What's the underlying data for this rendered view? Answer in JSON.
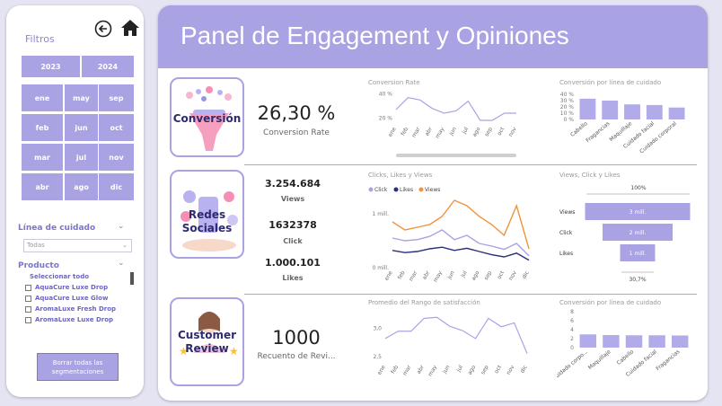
{
  "sidebar": {
    "title": "Filtros",
    "years": [
      "2023",
      "2024"
    ],
    "months": [
      "ene",
      "may",
      "sep",
      "feb",
      "jun",
      "oct",
      "mar",
      "jul",
      "nov",
      "abr",
      "ago",
      "dic"
    ],
    "care_line_label": "Línea de cuidado",
    "care_line_value": "Todas",
    "product_label": "Producto",
    "products": [
      "Seleccionar todo",
      "AquaCure Luxe Drop",
      "AquaCure Luxe Glow",
      "AromaLuxe Fresh Drop",
      "AromaLuxe Luxe Drop"
    ],
    "clear_button": "Borrar todas las segmentaciones"
  },
  "header": {
    "title": "Panel de Engagement y Opiniones"
  },
  "cards": {
    "conversion": "Conversión",
    "social_line1": "Redes",
    "social_line2": "Sociales",
    "review_line1": "Customer",
    "review_line2": "Review"
  },
  "kpis": {
    "conversion_rate_value": "26,30 %",
    "conversion_rate_label": "Conversion Rate",
    "views_value": "3.254.684",
    "views_label": "Views",
    "click_value": "1632378",
    "click_label": "Click",
    "likes_value": "1.000.101",
    "likes_label": "Likes",
    "reviews_value": "1000",
    "reviews_label": "Recuento de Revi..."
  },
  "chart_data": [
    {
      "type": "line",
      "title": "Conversion Rate",
      "categories": [
        "ene",
        "feb",
        "mar",
        "abr",
        "may",
        "jun",
        "jul",
        "ago",
        "sep",
        "oct",
        "nov"
      ],
      "series": [
        {
          "values": [
            27,
            37,
            35,
            28,
            24,
            26,
            34,
            18,
            18,
            24,
            24
          ]
        }
      ],
      "yticks": [
        "20 %",
        "40 %"
      ],
      "ylim": [
        15,
        42
      ],
      "color": "#a9a3e3"
    },
    {
      "type": "bar",
      "title": "Conversión por línea de cuidado",
      "categories": [
        "Cabello",
        "Fragancias",
        "Maquillaje",
        "Cuidado facial",
        "Cuidado corporal"
      ],
      "values": [
        33,
        30,
        24,
        23,
        19
      ],
      "yticks": [
        "0 %",
        "10 %",
        "20 %",
        "30 %",
        "40 %"
      ],
      "ylim": [
        0,
        40
      ],
      "color": "#b1abea"
    },
    {
      "type": "line",
      "title": "Clicks, Likes y Views",
      "categories": [
        "ene",
        "feb",
        "mar",
        "abr",
        "may",
        "jun",
        "jul",
        "ago",
        "sep",
        "oct",
        "nov",
        "dic"
      ],
      "series": [
        {
          "name": "Click",
          "color": "#a9a3e3",
          "values": [
            0.55,
            0.5,
            0.52,
            0.58,
            0.7,
            0.52,
            0.6,
            0.45,
            0.4,
            0.34,
            0.45,
            0.22
          ]
        },
        {
          "name": "Likes",
          "color": "#2a2f7a",
          "values": [
            0.32,
            0.28,
            0.3,
            0.35,
            0.38,
            0.32,
            0.36,
            0.3,
            0.24,
            0.2,
            0.27,
            0.14
          ]
        },
        {
          "name": "Views",
          "color": "#f0933a",
          "values": [
            0.85,
            0.7,
            0.75,
            0.8,
            0.95,
            1.25,
            1.15,
            0.95,
            0.8,
            0.6,
            1.15,
            0.35
          ]
        }
      ],
      "yticks": [
        "0 mill.",
        "1 mill."
      ],
      "ylim": [
        0,
        1.3
      ]
    },
    {
      "type": "bar",
      "title": "Views, Click y Likes",
      "top_label": "100%",
      "bottom_label": "30,7%",
      "categories": [
        "Views",
        "Click",
        "Likes"
      ],
      "values": [
        3,
        2,
        1
      ],
      "value_labels": [
        "3 mill.",
        "2 mill.",
        "1 mill."
      ],
      "color": "#a9a3e3"
    },
    {
      "type": "line",
      "title": "Promedio del Rango de satisfacción",
      "categories": [
        "ene",
        "feb",
        "mar",
        "abr",
        "may",
        "jun",
        "jul",
        "ago",
        "sep",
        "oct",
        "nov",
        "dic"
      ],
      "series": [
        {
          "values": [
            2.82,
            2.95,
            2.95,
            3.18,
            3.2,
            3.04,
            2.96,
            2.82,
            3.18,
            3.03,
            3.1,
            2.55
          ]
        }
      ],
      "yticks": [
        "2,5",
        "3,0"
      ],
      "ylim": [
        2.4,
        3.3
      ],
      "color": "#a9a3e3"
    },
    {
      "type": "bar",
      "title": "Conversión por línea de cuidado",
      "categories": [
        "Cuidado corpo...",
        "Maquillaje",
        "Cabello",
        "Cuidado facial",
        "Fragancias"
      ],
      "values": [
        2.95,
        2.8,
        2.75,
        2.75,
        2.7
      ],
      "yticks": [
        "0",
        "2",
        "4",
        "6",
        "8"
      ],
      "ylim": [
        0,
        8
      ],
      "color": "#b1abea"
    }
  ]
}
